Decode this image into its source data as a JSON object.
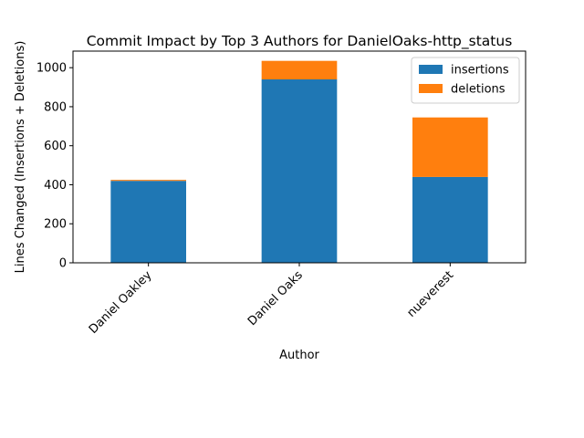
{
  "chart_data": {
    "type": "bar",
    "stacked": true,
    "title": "Commit Impact by Top 3 Authors for DanielOaks-http_status",
    "xlabel": "Author",
    "ylabel": "Lines Changed (Insertions + Deletions)",
    "categories": [
      "Daniel Oakley",
      "Daniel Oaks",
      "nueverest"
    ],
    "series": [
      {
        "name": "insertions",
        "color": "#1f77b4",
        "values": [
          420,
          940,
          440
        ]
      },
      {
        "name": "deletions",
        "color": "#ff7f0e",
        "values": [
          5,
          95,
          305
        ]
      }
    ],
    "ylim": [
      0,
      1085
    ],
    "yticks": [
      0,
      200,
      400,
      600,
      800,
      1000
    ],
    "grid": false,
    "legend_position": "top-right"
  }
}
